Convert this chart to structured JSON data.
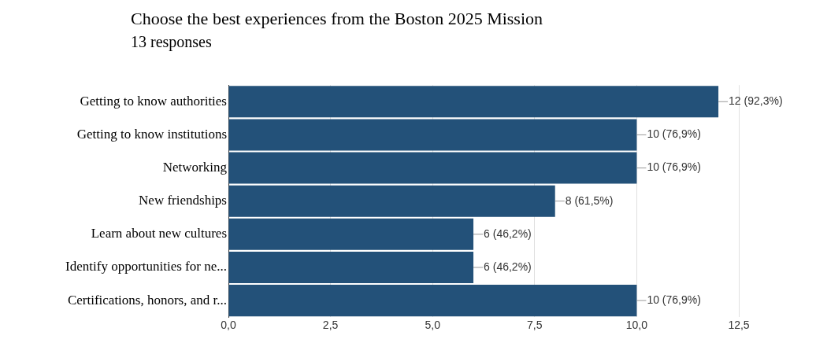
{
  "chart_data": {
    "type": "bar",
    "orientation": "horizontal",
    "title": "Choose the best experiences from the Boston 2025 Mission",
    "subtitle": "13 responses",
    "categories": [
      "Getting to know authorities",
      "Getting to know institutions",
      "Networking",
      "New friendships",
      "Learn about new cultures",
      "Identify opportunities for ne...",
      "Certifications, honors, and r..."
    ],
    "values": [
      12,
      10,
      10,
      8,
      6,
      6,
      10
    ],
    "value_labels": [
      "12 (92,3%)",
      "10 (76,9%)",
      "10 (76,9%)",
      "8 (61,5%)",
      "6 (46,2%)",
      "6 (46,2%)",
      "10 (76,9%)"
    ],
    "color": "#235179",
    "xlim": [
      0,
      12.5
    ],
    "xticks": [
      {
        "value": 0,
        "label": "0,0"
      },
      {
        "value": 2.5,
        "label": "2,5"
      },
      {
        "value": 5,
        "label": "5,0"
      },
      {
        "value": 7.5,
        "label": "7,5"
      },
      {
        "value": 10,
        "label": "10,0"
      },
      {
        "value": 12.5,
        "label": "12,5"
      }
    ],
    "grid": "x",
    "legend": false
  }
}
